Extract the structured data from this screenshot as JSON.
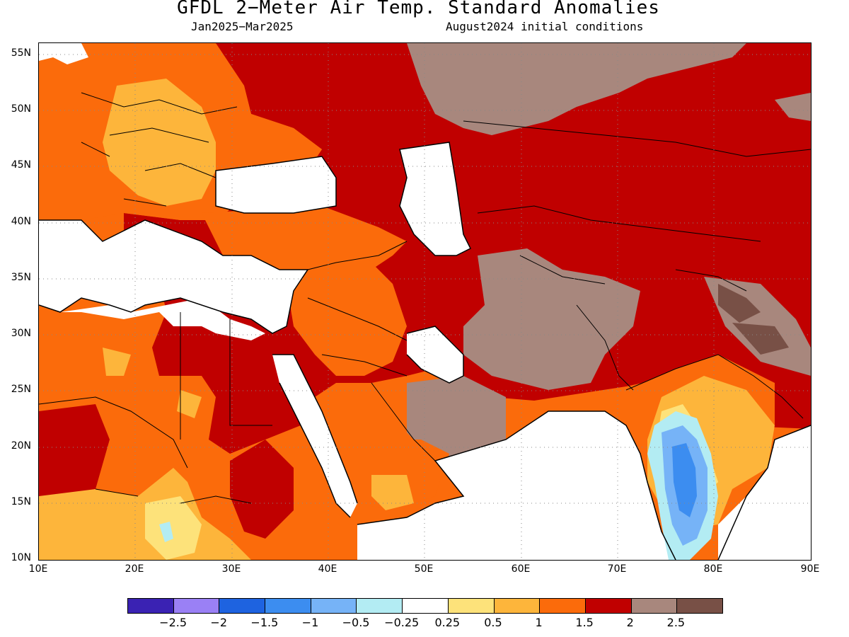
{
  "title": "GFDL 2−Meter Air Temp. Standard Anomalies",
  "subtitle_left": "Jan2025−Mar2025",
  "subtitle_right": "August2024 initial conditions",
  "map": {
    "lon_range": [
      10,
      90
    ],
    "lat_range": [
      10,
      56
    ],
    "lat_ticks": [
      "55N",
      "50N",
      "45N",
      "40N",
      "35N",
      "30N",
      "25N",
      "20N",
      "15N",
      "10N"
    ],
    "lon_ticks": [
      "10E",
      "20E",
      "30E",
      "40E",
      "50E",
      "60E",
      "70E",
      "80E",
      "90E"
    ],
    "gridlines": "dotted"
  },
  "colorbar": {
    "colors": [
      "#3a22b3",
      "#9a80f5",
      "#1e63e0",
      "#3c8df0",
      "#76b3f7",
      "#b3ecf3",
      "#ffffff",
      "#fde27a",
      "#fdb53b",
      "#fb6b0b",
      "#c00000",
      "#a8877d",
      "#785046"
    ],
    "labels": [
      "−2.5",
      "−2",
      "−1.5",
      "−1",
      "−0.5",
      "−0.25",
      "0.25",
      "0.5",
      "1",
      "1.5",
      "2",
      "2.5"
    ]
  }
}
